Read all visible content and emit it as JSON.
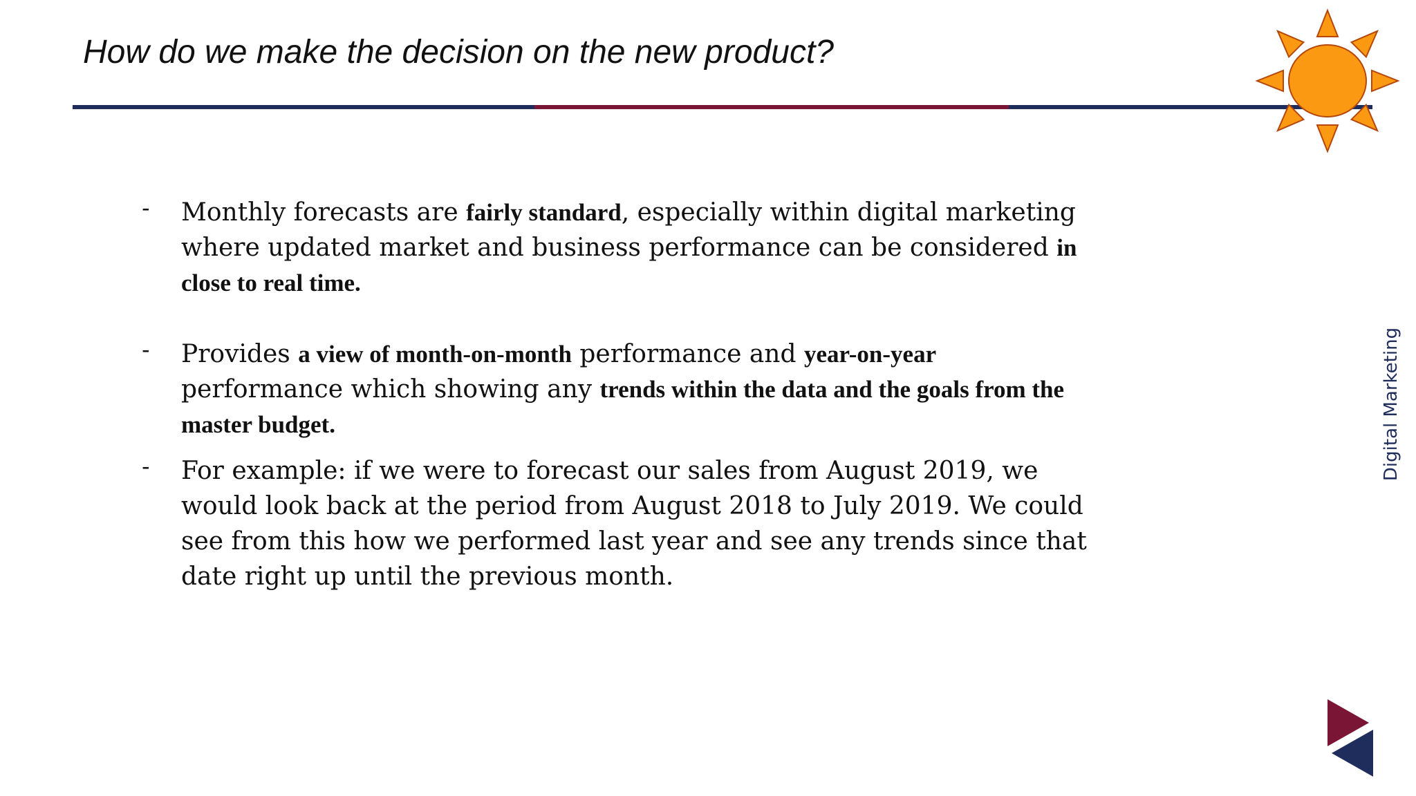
{
  "slide": {
    "title": "How do we make the decision on the new product?",
    "side_label": "Digital Marketing",
    "bullet_marker": "-"
  },
  "bullets": [
    {
      "segments": [
        {
          "text": "Monthly forecasts are ",
          "bold": false
        },
        {
          "text": "fairly standard",
          "bold": true
        },
        {
          "text": ", especially within digital marketing where  updated market and business performance can be considered ",
          "bold": false
        },
        {
          "text": "in close to real time.",
          "bold": true
        }
      ]
    },
    {
      "segments": [
        {
          "text": "Provides ",
          "bold": false
        },
        {
          "text": "a view of month-on-month",
          "bold": true
        },
        {
          "text": " performance and ",
          "bold": false
        },
        {
          "text": "year-on-year",
          "bold": true
        },
        {
          "text": " performance which showing any ",
          "bold": false
        },
        {
          "text": "trends within the data and the goals from  the master budget.",
          "bold": true
        }
      ]
    },
    {
      "segments": [
        {
          "text": "For example: if we were to forecast our sales from August 2019, we would look  back at the period from August 2018 to July 2019. We could see from this how we  performed last year and see any trends since that date right up until the previous  month.",
          "bold": false
        }
      ]
    }
  ],
  "colors": {
    "navy": "#1f2d5c",
    "maroon": "#7a1535",
    "sun_fill": "#fb9a12",
    "sun_stroke": "#b5470b"
  },
  "icons": {
    "sun": "sun-icon",
    "logo": "play-triangles-logo"
  }
}
